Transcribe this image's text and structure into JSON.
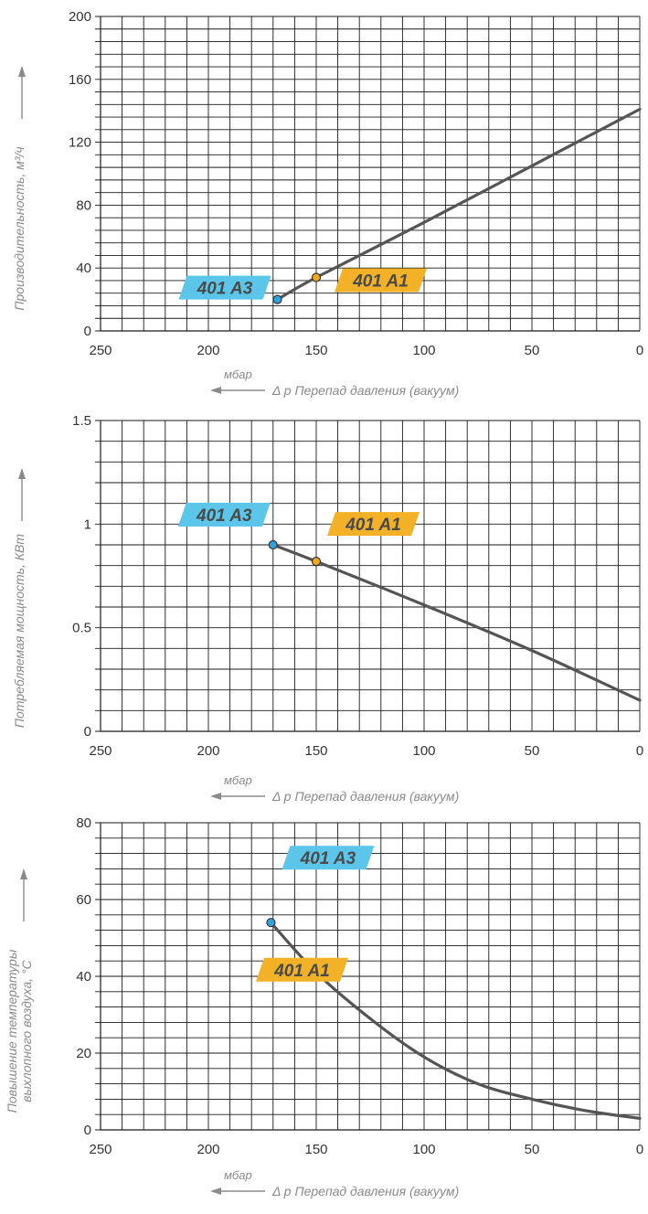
{
  "colors": {
    "curve": "#555555",
    "a3_tag": "#5cc6ea",
    "a1_tag": "#f2b126",
    "a3_point": "#2ea3df",
    "a1_point": "#f2a81d",
    "axis_text": "#8a8a8a"
  },
  "chart_data": [
    {
      "type": "line",
      "ylabel": "Производительность, м³/ч",
      "unit_label": "мбар",
      "xlabel": "Δ p Перепад давления (вакуум)",
      "xlim": [
        250,
        0
      ],
      "ylim": [
        0,
        200
      ],
      "x_ticks": [
        250,
        200,
        150,
        100,
        50,
        0
      ],
      "x_tick_labels": [
        "250",
        "200",
        "150",
        "100",
        "50",
        "0"
      ],
      "y_ticks": [
        0,
        40,
        80,
        120,
        160,
        200
      ],
      "y_tick_labels": [
        "0",
        "40",
        "80",
        "120",
        "160",
        "200"
      ],
      "grid": true,
      "series": [
        {
          "x": [
            168,
            150,
            100,
            50,
            0
          ],
          "y": [
            20,
            34,
            69,
            105,
            141
          ]
        }
      ],
      "points": [
        {
          "label": "401 A3",
          "x": 168,
          "y": 20,
          "color": "#2ea3df",
          "tag_color": "#5cc6ea"
        },
        {
          "label": "401 A1",
          "x": 150,
          "y": 34,
          "color": "#f2a81d",
          "tag_color": "#f2b126"
        }
      ]
    },
    {
      "type": "line",
      "ylabel": "Потребляемая мощность, КВт",
      "unit_label": "мбар",
      "xlabel": "Δ p Перепад давления (вакуум)",
      "xlim": [
        250,
        0
      ],
      "ylim": [
        0,
        1.5
      ],
      "x_ticks": [
        250,
        200,
        150,
        100,
        50,
        0
      ],
      "x_tick_labels": [
        "250",
        "200",
        "150",
        "100",
        "50",
        "0"
      ],
      "y_ticks": [
        0,
        0.5,
        1,
        1.5
      ],
      "y_tick_labels": [
        "0",
        "0.5",
        "1",
        "1.5"
      ],
      "grid": true,
      "series": [
        {
          "x": [
            170,
            150,
            100,
            50,
            0
          ],
          "y": [
            0.9,
            0.82,
            0.61,
            0.39,
            0.15
          ]
        }
      ],
      "points": [
        {
          "label": "401 A3",
          "x": 170,
          "y": 0.9,
          "color": "#2ea3df",
          "tag_color": "#5cc6ea"
        },
        {
          "label": "401 A1",
          "x": 150,
          "y": 0.82,
          "color": "#f2a81d",
          "tag_color": "#f2b126"
        }
      ]
    },
    {
      "type": "line",
      "ylabel": "Повышение температуры выхлопного воздуха, °C",
      "ylabel_lines": [
        "Повышение температуры",
        "выхлопного воздуха, °C"
      ],
      "unit_label": "мбар",
      "xlabel": "Δ p Перепад давления (вакуум)",
      "xlim": [
        250,
        0
      ],
      "ylim": [
        0,
        80
      ],
      "x_ticks": [
        250,
        200,
        150,
        100,
        50,
        0
      ],
      "x_tick_labels": [
        "250",
        "200",
        "150",
        "100",
        "50",
        "0"
      ],
      "y_ticks": [
        0,
        20,
        40,
        60,
        80
      ],
      "y_tick_labels": [
        "0",
        "20",
        "40",
        "60",
        "80"
      ],
      "grid": true,
      "series": [
        {
          "x": [
            171,
            150,
            125,
            100,
            75,
            50,
            25,
            0
          ],
          "y": [
            54,
            41,
            29,
            19,
            12,
            8,
            5,
            3
          ]
        }
      ],
      "points": [
        {
          "label": "401 A3",
          "x": 171,
          "y": 54,
          "color": "#2ea3df",
          "tag_color": "#5cc6ea"
        },
        {
          "label": "401 A1",
          "x": 150,
          "y": 41,
          "color": "#f2a81d",
          "tag_color": "#f2b126"
        }
      ]
    }
  ]
}
